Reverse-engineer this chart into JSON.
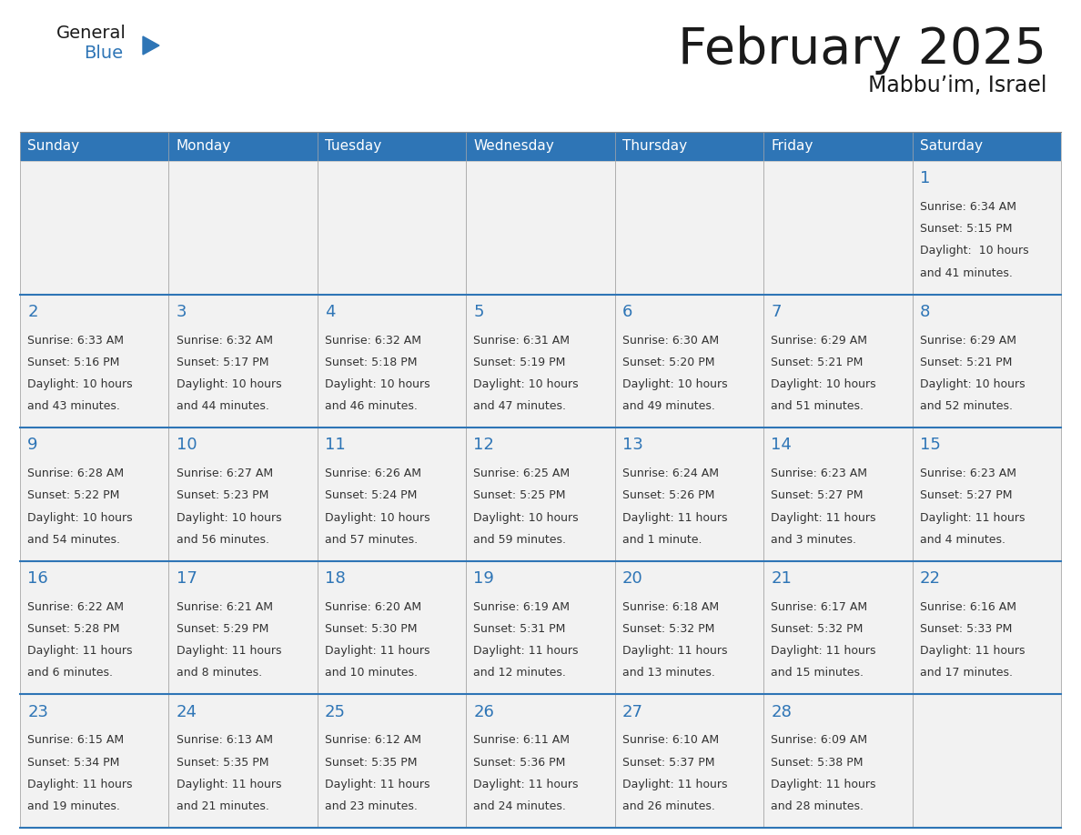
{
  "title": "February 2025",
  "subtitle": "Mabbu’im, Israel",
  "days_of_week": [
    "Sunday",
    "Monday",
    "Tuesday",
    "Wednesday",
    "Thursday",
    "Friday",
    "Saturday"
  ],
  "header_bg": "#2E75B6",
  "header_text": "#FFFFFF",
  "cell_bg": "#F2F2F2",
  "cell_border_color": "#AAAAAA",
  "row_sep_color": "#2E75B6",
  "day_num_color": "#2E75B6",
  "info_text_color": "#333333",
  "title_color": "#1a1a1a",
  "logo_general_color": "#1a1a1a",
  "logo_blue_color": "#2E75B6",
  "calendar_data": [
    [
      null,
      null,
      null,
      null,
      null,
      null,
      {
        "day": 1,
        "sunrise": "6:34 AM",
        "sunset": "5:15 PM",
        "daylight_line1": "Daylight:  10 hours",
        "daylight_line2": "and 41 minutes."
      }
    ],
    [
      {
        "day": 2,
        "sunrise": "6:33 AM",
        "sunset": "5:16 PM",
        "daylight_line1": "Daylight: 10 hours",
        "daylight_line2": "and 43 minutes."
      },
      {
        "day": 3,
        "sunrise": "6:32 AM",
        "sunset": "5:17 PM",
        "daylight_line1": "Daylight: 10 hours",
        "daylight_line2": "and 44 minutes."
      },
      {
        "day": 4,
        "sunrise": "6:32 AM",
        "sunset": "5:18 PM",
        "daylight_line1": "Daylight: 10 hours",
        "daylight_line2": "and 46 minutes."
      },
      {
        "day": 5,
        "sunrise": "6:31 AM",
        "sunset": "5:19 PM",
        "daylight_line1": "Daylight: 10 hours",
        "daylight_line2": "and 47 minutes."
      },
      {
        "day": 6,
        "sunrise": "6:30 AM",
        "sunset": "5:20 PM",
        "daylight_line1": "Daylight: 10 hours",
        "daylight_line2": "and 49 minutes."
      },
      {
        "day": 7,
        "sunrise": "6:29 AM",
        "sunset": "5:21 PM",
        "daylight_line1": "Daylight: 10 hours",
        "daylight_line2": "and 51 minutes."
      },
      {
        "day": 8,
        "sunrise": "6:29 AM",
        "sunset": "5:21 PM",
        "daylight_line1": "Daylight: 10 hours",
        "daylight_line2": "and 52 minutes."
      }
    ],
    [
      {
        "day": 9,
        "sunrise": "6:28 AM",
        "sunset": "5:22 PM",
        "daylight_line1": "Daylight: 10 hours",
        "daylight_line2": "and 54 minutes."
      },
      {
        "day": 10,
        "sunrise": "6:27 AM",
        "sunset": "5:23 PM",
        "daylight_line1": "Daylight: 10 hours",
        "daylight_line2": "and 56 minutes."
      },
      {
        "day": 11,
        "sunrise": "6:26 AM",
        "sunset": "5:24 PM",
        "daylight_line1": "Daylight: 10 hours",
        "daylight_line2": "and 57 minutes."
      },
      {
        "day": 12,
        "sunrise": "6:25 AM",
        "sunset": "5:25 PM",
        "daylight_line1": "Daylight: 10 hours",
        "daylight_line2": "and 59 minutes."
      },
      {
        "day": 13,
        "sunrise": "6:24 AM",
        "sunset": "5:26 PM",
        "daylight_line1": "Daylight: 11 hours",
        "daylight_line2": "and 1 minute."
      },
      {
        "day": 14,
        "sunrise": "6:23 AM",
        "sunset": "5:27 PM",
        "daylight_line1": "Daylight: 11 hours",
        "daylight_line2": "and 3 minutes."
      },
      {
        "day": 15,
        "sunrise": "6:23 AM",
        "sunset": "5:27 PM",
        "daylight_line1": "Daylight: 11 hours",
        "daylight_line2": "and 4 minutes."
      }
    ],
    [
      {
        "day": 16,
        "sunrise": "6:22 AM",
        "sunset": "5:28 PM",
        "daylight_line1": "Daylight: 11 hours",
        "daylight_line2": "and 6 minutes."
      },
      {
        "day": 17,
        "sunrise": "6:21 AM",
        "sunset": "5:29 PM",
        "daylight_line1": "Daylight: 11 hours",
        "daylight_line2": "and 8 minutes."
      },
      {
        "day": 18,
        "sunrise": "6:20 AM",
        "sunset": "5:30 PM",
        "daylight_line1": "Daylight: 11 hours",
        "daylight_line2": "and 10 minutes."
      },
      {
        "day": 19,
        "sunrise": "6:19 AM",
        "sunset": "5:31 PM",
        "daylight_line1": "Daylight: 11 hours",
        "daylight_line2": "and 12 minutes."
      },
      {
        "day": 20,
        "sunrise": "6:18 AM",
        "sunset": "5:32 PM",
        "daylight_line1": "Daylight: 11 hours",
        "daylight_line2": "and 13 minutes."
      },
      {
        "day": 21,
        "sunrise": "6:17 AM",
        "sunset": "5:32 PM",
        "daylight_line1": "Daylight: 11 hours",
        "daylight_line2": "and 15 minutes."
      },
      {
        "day": 22,
        "sunrise": "6:16 AM",
        "sunset": "5:33 PM",
        "daylight_line1": "Daylight: 11 hours",
        "daylight_line2": "and 17 minutes."
      }
    ],
    [
      {
        "day": 23,
        "sunrise": "6:15 AM",
        "sunset": "5:34 PM",
        "daylight_line1": "Daylight: 11 hours",
        "daylight_line2": "and 19 minutes."
      },
      {
        "day": 24,
        "sunrise": "6:13 AM",
        "sunset": "5:35 PM",
        "daylight_line1": "Daylight: 11 hours",
        "daylight_line2": "and 21 minutes."
      },
      {
        "day": 25,
        "sunrise": "6:12 AM",
        "sunset": "5:35 PM",
        "daylight_line1": "Daylight: 11 hours",
        "daylight_line2": "and 23 minutes."
      },
      {
        "day": 26,
        "sunrise": "6:11 AM",
        "sunset": "5:36 PM",
        "daylight_line1": "Daylight: 11 hours",
        "daylight_line2": "and 24 minutes."
      },
      {
        "day": 27,
        "sunrise": "6:10 AM",
        "sunset": "5:37 PM",
        "daylight_line1": "Daylight: 11 hours",
        "daylight_line2": "and 26 minutes."
      },
      {
        "day": 28,
        "sunrise": "6:09 AM",
        "sunset": "5:38 PM",
        "daylight_line1": "Daylight: 11 hours",
        "daylight_line2": "and 28 minutes."
      },
      null
    ]
  ]
}
